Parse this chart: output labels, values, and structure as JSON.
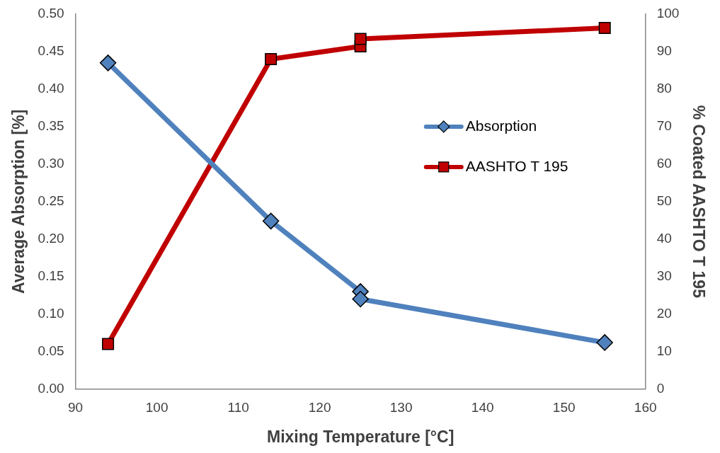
{
  "chart_data": {
    "type": "line",
    "xlabel": "Mixing Temperature [°C]",
    "ylabel": "Average Absorption [%]",
    "y2label": "% Coated AASHTO T 195",
    "xlim": [
      90,
      160
    ],
    "xticks": [
      90,
      100,
      110,
      120,
      130,
      140,
      150,
      160
    ],
    "ylim": [
      0,
      0.5
    ],
    "yticks": [
      {
        "value": 0,
        "label": "0.00"
      },
      {
        "value": 0.05,
        "label": "0.05"
      },
      {
        "value": 0.1,
        "label": "0.10"
      },
      {
        "value": 0.15,
        "label": "0.15"
      },
      {
        "value": 0.2,
        "label": "0.20"
      },
      {
        "value": 0.25,
        "label": "0.25"
      },
      {
        "value": 0.3,
        "label": "0.30"
      },
      {
        "value": 0.35,
        "label": "0.35"
      },
      {
        "value": 0.4,
        "label": "0.40"
      },
      {
        "value": 0.45,
        "label": "0.45"
      },
      {
        "value": 0.5,
        "label": "0.50"
      }
    ],
    "y2lim": [
      0,
      100
    ],
    "y2ticks": [
      0,
      10,
      20,
      30,
      40,
      50,
      60,
      70,
      80,
      90,
      100
    ],
    "grid": false,
    "legend": "right",
    "line_style": "solid",
    "series": [
      {
        "name": "Absorption",
        "color": "#4f81bd",
        "marker": "diamond",
        "x": [
          94,
          114,
          125,
          125,
          155
        ],
        "values": [
          0.435,
          0.224,
          0.13,
          0.12,
          0.062
        ]
      },
      {
        "name": "AASHTO T 195",
        "color": "#c00000",
        "marker": "square",
        "axis": "y2",
        "x": [
          94,
          114,
          125,
          125,
          155
        ],
        "values": [
          12,
          88,
          91.4,
          93.4,
          96.3
        ]
      }
    ]
  }
}
